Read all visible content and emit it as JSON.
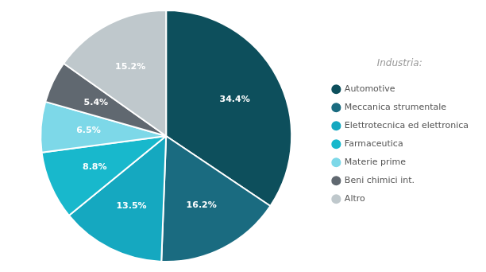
{
  "chart_data": {
    "type": "pie",
    "categories": [
      "Automotive",
      "Meccanica strumentale",
      "Elettrotecnica ed elettronica",
      "Farmaceutica",
      "Materie prime",
      "Beni chimici int.",
      "Altro"
    ],
    "values": [
      34.4,
      16.2,
      13.5,
      8.8,
      6.5,
      5.4,
      15.2
    ],
    "value_labels": [
      "34.4%",
      "16.2%",
      "13.5%",
      "8.8%",
      "6.5%",
      "5.4%",
      "15.2%"
    ],
    "colors": [
      "#0d4f5c",
      "#1a6b80",
      "#15a8c0",
      "#18b8cc",
      "#7dd8e8",
      "#606870",
      "#bfc8cc"
    ],
    "data_labels": true,
    "legend": "right",
    "legend_title": "Industria:"
  }
}
